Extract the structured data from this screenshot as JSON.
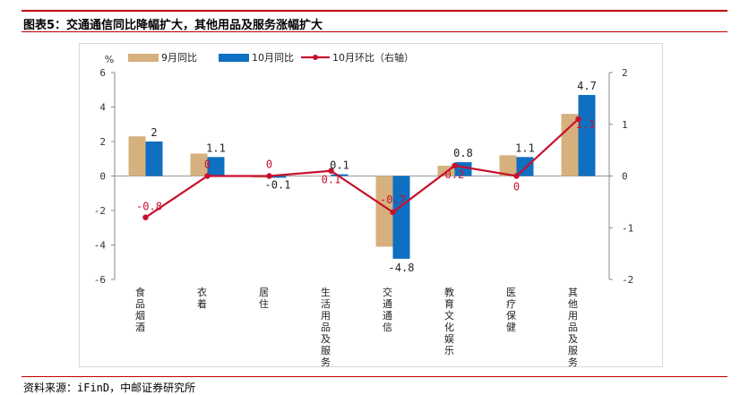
{
  "header": {
    "title": "图表5：交通通信同比降幅扩大，其他用品及服务涨幅扩大"
  },
  "source": "资料来源：iFinD，中邮证券研究所",
  "colors": {
    "accent_red": "#c00000",
    "sep_bar": "#d6b17e",
    "oct_bar": "#0f6fc0",
    "mom_line": "#c8102e",
    "axis": "#888888"
  },
  "chart_data": {
    "type": "bar",
    "categories": [
      "食品烟酒",
      "衣着",
      "居住",
      "生活用品及服务",
      "交通通信",
      "教育文化娱乐",
      "医疗保健",
      "其他用品及服务"
    ],
    "series": [
      {
        "name": "9月同比",
        "type": "bar",
        "axis": "left",
        "values": [
          2.3,
          1.3,
          -0.1,
          0.0,
          -4.1,
          0.6,
          1.2,
          3.6
        ]
      },
      {
        "name": "10月同比",
        "type": "bar",
        "axis": "left",
        "values": [
          2,
          1.1,
          -0.1,
          0.1,
          -4.8,
          0.8,
          1.1,
          4.7
        ]
      },
      {
        "name": "10月环比（右轴）",
        "type": "line",
        "axis": "right",
        "values": [
          -0.8,
          0,
          0,
          0.1,
          -0.7,
          0.2,
          0,
          1.1
        ]
      }
    ],
    "oct_labels": [
      "2",
      "1.1",
      "-0.1",
      "0.1",
      "-4.8",
      "0.8",
      "1.1",
      "4.7"
    ],
    "mom_labels": [
      "-0.8",
      "0",
      "0",
      "0.1",
      "-0.7",
      "0.2",
      "0",
      "1.1"
    ],
    "yunit": "%",
    "ylim": [
      -6,
      6
    ],
    "yticks": [
      "6",
      "4",
      "2",
      "0",
      "-2",
      "-4",
      "-6"
    ],
    "y2lim": [
      -2,
      2
    ],
    "y2ticks": [
      "2",
      "1",
      "0",
      "-1",
      "-2"
    ],
    "legend": "top"
  }
}
